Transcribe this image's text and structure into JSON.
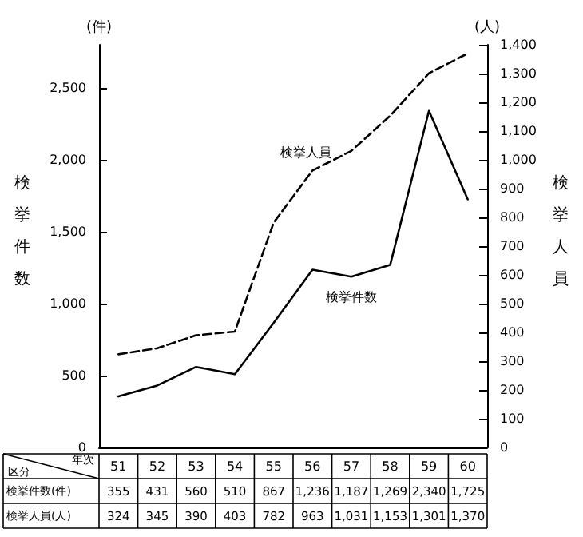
{
  "chart_data": {
    "type": "line",
    "categories": [
      "51",
      "52",
      "53",
      "54",
      "55",
      "56",
      "57",
      "58",
      "59",
      "60"
    ],
    "xlabel": "年次",
    "ylabel": "(件)",
    "y2label": "(人)",
    "ylim": [
      0,
      2800
    ],
    "yticks": [
      0,
      500,
      {
        "value": 1000,
        "label": "1,000"
      },
      {
        "value": 1500,
        "label": "1,500"
      },
      {
        "value": 2000,
        "label": "2,000"
      },
      {
        "value": 2500,
        "label": "2,500"
      }
    ],
    "y2lim": [
      0,
      1400
    ],
    "y2ticks": [
      0,
      100,
      200,
      300,
      400,
      500,
      600,
      700,
      800,
      900,
      {
        "value": 1000,
        "label": "1,000"
      },
      {
        "value": 1100,
        "label": "1,100"
      },
      {
        "value": 1200,
        "label": "1,200"
      },
      {
        "value": 1300,
        "label": "1,300"
      },
      {
        "value": 1400,
        "label": "1,400"
      }
    ],
    "series": [
      {
        "name": "検挙件数",
        "color": "#000000",
        "line_style": "solid",
        "values": [
          355,
          431,
          560,
          510,
          867,
          1236,
          1187,
          1269,
          2340,
          1725
        ],
        "value_labels": [
          "355",
          "431",
          "560",
          "510",
          "867",
          "1,236",
          "1,187",
          "1,269",
          "2,340",
          "1,725"
        ]
      },
      {
        "name": "検挙人員",
        "color": "#000000",
        "line_style": "dashed",
        "axis": "y2",
        "values": [
          324,
          345,
          390,
          403,
          782,
          963,
          1031,
          1153,
          1301,
          1370
        ],
        "value_labels": [
          "324",
          "345",
          "390",
          "403",
          "782",
          "963",
          "1,031",
          "1,153",
          "1,301",
          "1,370"
        ]
      }
    ],
    "annotations": [
      "検挙件数",
      "検挙人員",
      "区分",
      "検挙件数(件)",
      "検挙人員(人)"
    ],
    "marker": "none",
    "grid": false,
    "legend": false
  }
}
